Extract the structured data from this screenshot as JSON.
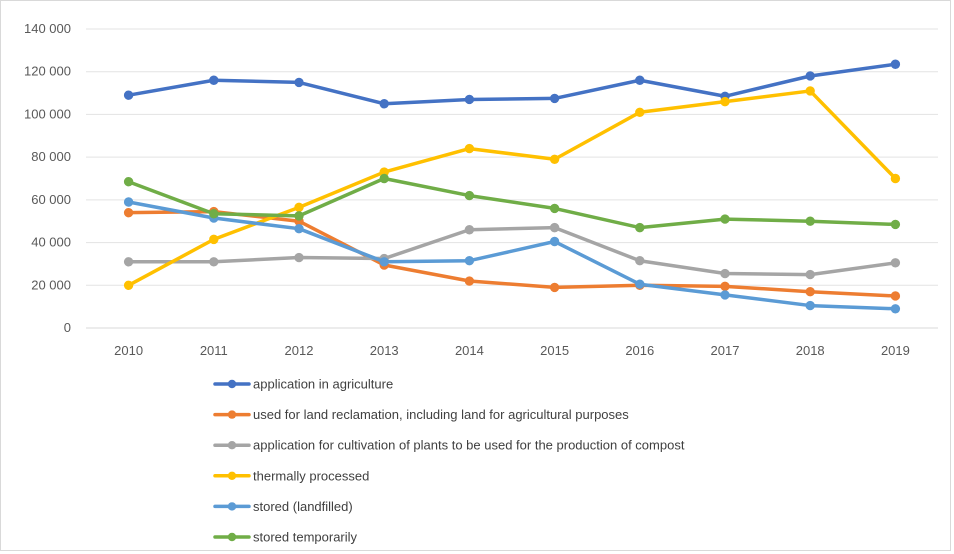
{
  "chart_data": {
    "type": "line",
    "title": "",
    "xlabel": "",
    "ylabel": "",
    "x": [
      "2010",
      "2011",
      "2012",
      "2013",
      "2014",
      "2015",
      "2016",
      "2017",
      "2018",
      "2019"
    ],
    "ylim": [
      0,
      140000
    ],
    "yticks": [
      0,
      20000,
      40000,
      60000,
      80000,
      100000,
      120000,
      140000
    ],
    "ytick_labels": [
      "0",
      "20 000",
      "40 000",
      "60 000",
      "80 000",
      "100 000",
      "120 000",
      "140 000"
    ],
    "grid": "horizontal",
    "legend_position": "bottom",
    "series": [
      {
        "name": "application in agriculture",
        "color": "#4472c4",
        "values": [
          109000,
          116000,
          115000,
          105000,
          107000,
          107500,
          116000,
          108500,
          118000,
          123500
        ]
      },
      {
        "name": "used for land reclamation, including land for agricultural purposes",
        "color": "#ed7d31",
        "values": [
          54000,
          54500,
          50000,
          29500,
          22000,
          19000,
          20000,
          19500,
          17000,
          15000
        ]
      },
      {
        "name": "application for cultivation of plants to be used for the production of compost",
        "color": "#a5a5a5",
        "values": [
          31000,
          31000,
          33000,
          32500,
          46000,
          47000,
          31500,
          25500,
          25000,
          30500
        ]
      },
      {
        "name": "thermally processed",
        "color": "#ffc000",
        "values": [
          20000,
          41500,
          56500,
          73000,
          84000,
          79000,
          101000,
          106000,
          111000,
          70000
        ]
      },
      {
        "name": "stored (landfilled)",
        "color": "#5b9bd5",
        "values": [
          59000,
          51500,
          46500,
          31000,
          31500,
          40500,
          20500,
          15500,
          10500,
          9000
        ]
      },
      {
        "name": "stored temporarily",
        "color": "#70ad47",
        "values": [
          68500,
          53500,
          52500,
          70000,
          62000,
          56000,
          47000,
          51000,
          50000,
          48500
        ]
      }
    ]
  }
}
